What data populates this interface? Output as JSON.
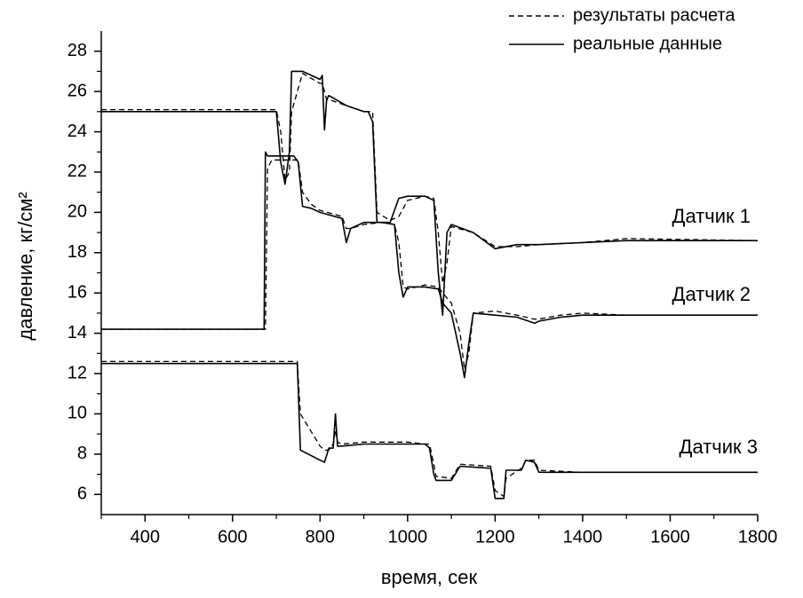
{
  "chart_data": {
    "type": "line",
    "xlabel": "время, сек",
    "ylabel": "давление, кг/см²",
    "xlim": [
      300,
      1800
    ],
    "ylim": [
      5,
      29
    ],
    "xticks": [
      400,
      600,
      800,
      1000,
      1200,
      1400,
      1600,
      1800
    ],
    "yticks": [
      6,
      8,
      10,
      12,
      14,
      16,
      18,
      20,
      22,
      24,
      26,
      28
    ],
    "xticks_minor": [
      300,
      500,
      700,
      900,
      1100,
      1300,
      1500,
      1700
    ],
    "yticks_minor": [
      7,
      9,
      11,
      13,
      15,
      17,
      19,
      21,
      23,
      25,
      27
    ],
    "annotations": [
      "Датчик 1",
      "Датчик 2",
      "Датчик 3"
    ],
    "series": [
      {
        "name": "результаты расчета",
        "color": "#000000",
        "dash": true,
        "lines": [
          {
            "x": [
              300,
              700,
              710,
              720,
              730,
              735,
              760,
              800,
              805,
              810,
              815,
              820,
              860,
              900,
              910,
              920,
              930,
              960,
              980,
              1000,
              1040,
              1060,
              1070,
              1080,
              1090,
              1100,
              1150,
              1200,
              1250,
              1300,
              1400,
              1500,
              1800
            ],
            "values": [
              25.1,
              25.1,
              24,
              21.6,
              22,
              25,
              26.9,
              26.4,
              26.4,
              26,
              25.6,
              25.6,
              25.3,
              25,
              25,
              25,
              20,
              19.6,
              19.8,
              20.6,
              20.8,
              20.7,
              19,
              16.5,
              17.5,
              19.3,
              19,
              18.3,
              18.3,
              18.4,
              18.5,
              18.7,
              18.6
            ]
          },
          {
            "x": [
              300,
              672,
              675,
              680,
              690,
              700,
              740,
              750,
              760,
              780,
              800,
              850,
              860,
              870,
              900,
              940,
              970,
              980,
              990,
              1000,
              1040,
              1070,
              1080,
              1100,
              1120,
              1130,
              1140,
              1150,
              1200,
              1250,
              1290,
              1300,
              1350,
              1400,
              1500,
              1800
            ],
            "values": [
              14.2,
              14.2,
              14.2,
              22.2,
              22.6,
              22.6,
              22.6,
              22.6,
              21,
              20.4,
              20.1,
              19.8,
              19.2,
              19.2,
              19.4,
              19.5,
              19.4,
              18.5,
              16.3,
              16.2,
              16.4,
              16.3,
              16,
              15.5,
              14,
              12.2,
              13,
              15,
              15.1,
              14.9,
              14.7,
              14.7,
              14.9,
              15,
              14.9,
              14.9
            ]
          },
          {
            "x": [
              300,
              748,
              755,
              800,
              810,
              820,
              830,
              835,
              840,
              850,
              900,
              1000,
              1040,
              1050,
              1060,
              1065,
              1100,
              1120,
              1190,
              1200,
              1220,
              1225,
              1260,
              1270,
              1290,
              1300,
              1400,
              1500,
              1800
            ],
            "values": [
              12.6,
              12.6,
              10,
              8.4,
              8.2,
              8.2,
              8.5,
              9.2,
              8.6,
              8.5,
              8.6,
              8.6,
              8.5,
              8.5,
              7.5,
              6.9,
              6.8,
              7.5,
              7.4,
              6.2,
              5.9,
              6.8,
              7.3,
              7.7,
              7.7,
              7.2,
              7.1,
              7.1,
              7.1
            ]
          }
        ]
      },
      {
        "name": "реальные данные",
        "color": "#000000",
        "dash": false,
        "lines": [
          {
            "x": [
              300,
              700,
              710,
              720,
              730,
              735,
              760,
              800,
              805,
              810,
              815,
              820,
              860,
              900,
              910,
              920,
              930,
              960,
              980,
              1000,
              1040,
              1060,
              1070,
              1080,
              1090,
              1100,
              1150,
              1200,
              1250,
              1300,
              1400,
              1500,
              1800
            ],
            "values": [
              25,
              25,
              22.5,
              21.4,
              23,
              27,
              27,
              26.6,
              26.8,
              24.1,
              25.6,
              25.8,
              25.3,
              25,
              25,
              24.5,
              19.5,
              19.5,
              20.7,
              20.8,
              20.8,
              20.6,
              17,
              14.9,
              19,
              19.4,
              19,
              18.2,
              18.4,
              18.4,
              18.5,
              18.6,
              18.6
            ]
          },
          {
            "x": [
              300,
              672,
              675,
              680,
              690,
              700,
              740,
              750,
              760,
              780,
              800,
              850,
              860,
              870,
              900,
              940,
              970,
              980,
              990,
              1000,
              1040,
              1070,
              1080,
              1100,
              1120,
              1130,
              1140,
              1150,
              1200,
              1250,
              1290,
              1300,
              1350,
              1400,
              1500,
              1800
            ],
            "values": [
              14.2,
              14.2,
              23,
              22.8,
              22.8,
              22.8,
              22.8,
              22.5,
              20.3,
              20.2,
              20,
              19.7,
              18.5,
              19.2,
              19.5,
              19.5,
              19.4,
              17,
              15.8,
              16.3,
              16.3,
              16.2,
              15.5,
              15,
              13,
              11.8,
              13.5,
              15,
              14.9,
              14.8,
              14.5,
              14.6,
              14.8,
              14.9,
              14.9,
              14.9
            ]
          },
          {
            "x": [
              300,
              748,
              755,
              800,
              810,
              820,
              830,
              835,
              840,
              850,
              900,
              1000,
              1040,
              1050,
              1060,
              1065,
              1100,
              1120,
              1190,
              1200,
              1220,
              1225,
              1260,
              1270,
              1290,
              1300,
              1400,
              1500,
              1800
            ],
            "values": [
              12.5,
              12.5,
              8.2,
              7.7,
              7.6,
              8.3,
              8.3,
              10,
              8.4,
              8.4,
              8.5,
              8.5,
              8.5,
              8.3,
              7,
              6.7,
              6.7,
              7.4,
              7.3,
              5.8,
              5.8,
              7.2,
              7.2,
              7.7,
              7.6,
              7.1,
              7.1,
              7.1,
              7.1
            ]
          }
        ]
      }
    ]
  }
}
